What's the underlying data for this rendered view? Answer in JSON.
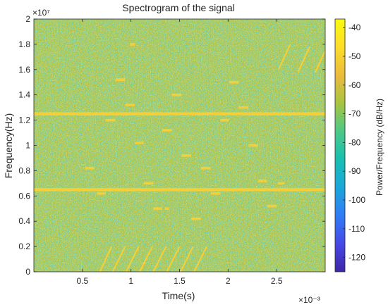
{
  "chart_data": {
    "type": "heatmap",
    "title": "Spectrogram of the signal",
    "xlabel": "Time(s)",
    "ylabel": "Frequency(Hz)",
    "x_multiplier": "×10⁻³",
    "y_multiplier": "×10⁷",
    "xlim": [
      0,
      3.0
    ],
    "ylim": [
      0,
      2.0
    ],
    "x_ticks": [
      0.5,
      1.0,
      1.5,
      2.0,
      2.5
    ],
    "x_tick_labels": [
      "0.5",
      "1",
      "1.5",
      "2",
      "2.5"
    ],
    "y_ticks": [
      0,
      0.2,
      0.4,
      0.6,
      0.8,
      1.0,
      1.2,
      1.4,
      1.6,
      1.8,
      2.0
    ],
    "y_tick_labels": [
      "0",
      "0.2",
      "0.4",
      "0.6",
      "0.8",
      "1",
      "1.2",
      "1.4",
      "1.6",
      "1.8",
      "2"
    ],
    "colorbar": {
      "label": "Power/Frequency (dB/Hz)",
      "range": [
        -125,
        -37
      ],
      "ticks": [
        -40,
        -50,
        -60,
        -70,
        -80,
        -90,
        -100,
        -110,
        -120
      ],
      "tick_labels": [
        "-40",
        "-50",
        "-60",
        "-70",
        "-80",
        "-90",
        "-100",
        "-110",
        "-120"
      ]
    },
    "colormap": [
      "#3e26a8",
      "#4748e8",
      "#2f7cf7",
      "#1aa7da",
      "#18bfb1",
      "#4cc987",
      "#a8c441",
      "#ebbb3c",
      "#fddd2a",
      "#f9fb0e"
    ],
    "background_color": "#b3c84a",
    "feature_color": "#f4cf3a",
    "tones_hz_e7": [
      0.65,
      1.25
    ],
    "pulses": [
      {
        "t_start": 0.53,
        "t_end": 0.62,
        "f": 0.82
      },
      {
        "t_start": 0.65,
        "t_end": 0.74,
        "f": 0.62
      },
      {
        "t_start": 0.74,
        "t_end": 0.84,
        "f": 1.2
      },
      {
        "t_start": 0.84,
        "t_end": 0.94,
        "f": 1.52
      },
      {
        "t_start": 0.94,
        "t_end": 1.04,
        "f": 1.32
      },
      {
        "t_start": 0.99,
        "t_end": 1.04,
        "f": 1.8
      },
      {
        "t_start": 1.04,
        "t_end": 1.13,
        "f": 1.02
      },
      {
        "t_start": 1.13,
        "t_end": 1.23,
        "f": 0.7
      },
      {
        "t_start": 1.23,
        "t_end": 1.32,
        "f": 0.5
      },
      {
        "t_start": 1.35,
        "t_end": 1.39,
        "f": 0.5
      },
      {
        "t_start": 1.32,
        "t_end": 1.42,
        "f": 1.12
      },
      {
        "t_start": 1.42,
        "t_end": 1.52,
        "f": 1.4
      },
      {
        "t_start": 1.52,
        "t_end": 1.62,
        "f": 0.92
      },
      {
        "t_start": 1.62,
        "t_end": 1.72,
        "f": 0.42
      },
      {
        "t_start": 1.72,
        "t_end": 1.82,
        "f": 0.82
      },
      {
        "t_start": 1.82,
        "t_end": 1.92,
        "f": 0.62
      },
      {
        "t_start": 1.92,
        "t_end": 2.01,
        "f": 1.2
      },
      {
        "t_start": 2.01,
        "t_end": 2.11,
        "f": 1.5
      },
      {
        "t_start": 2.11,
        "t_end": 2.21,
        "f": 1.3
      },
      {
        "t_start": 2.21,
        "t_end": 2.31,
        "f": 1.0
      },
      {
        "t_start": 2.31,
        "t_end": 2.4,
        "f": 0.72
      },
      {
        "t_start": 2.4,
        "t_end": 2.5,
        "f": 0.52
      },
      {
        "t_start": 2.51,
        "t_end": 2.58,
        "f": 0.7
      }
    ],
    "chirps": [
      {
        "t_start": 0.68,
        "f_start": 0.0,
        "t_end": 0.8,
        "f_end": 0.2
      },
      {
        "t_start": 0.81,
        "f_start": 0.0,
        "t_end": 0.94,
        "f_end": 0.2
      },
      {
        "t_start": 0.95,
        "f_start": 0.0,
        "t_end": 1.08,
        "f_end": 0.2
      },
      {
        "t_start": 1.09,
        "f_start": 0.0,
        "t_end": 1.22,
        "f_end": 0.2
      },
      {
        "t_start": 1.23,
        "f_start": 0.0,
        "t_end": 1.36,
        "f_end": 0.2
      },
      {
        "t_start": 1.37,
        "f_start": 0.0,
        "t_end": 1.5,
        "f_end": 0.2
      },
      {
        "t_start": 1.51,
        "f_start": 0.0,
        "t_end": 1.64,
        "f_end": 0.2
      },
      {
        "t_start": 1.65,
        "f_start": 0.0,
        "t_end": 1.78,
        "f_end": 0.2
      },
      {
        "t_start": 2.52,
        "f_start": 1.6,
        "t_end": 2.64,
        "f_end": 1.8
      },
      {
        "t_start": 2.72,
        "f_start": 1.58,
        "t_end": 2.84,
        "f_end": 1.78
      },
      {
        "t_start": 2.9,
        "f_start": 1.58,
        "t_end": 3.0,
        "f_end": 1.75
      }
    ]
  }
}
